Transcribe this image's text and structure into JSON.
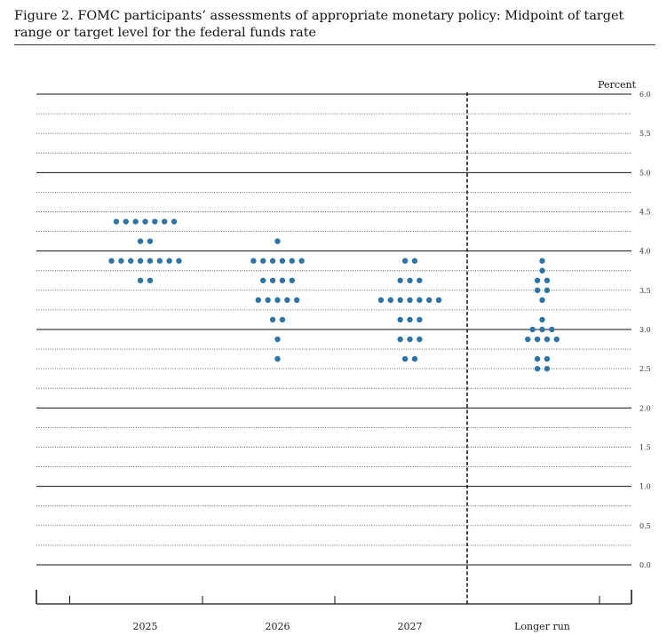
{
  "figure": {
    "title": "Figure 2.  FOMC participants’ assessments of appropriate monetary policy: Midpoint of target range or target level for the federal funds rate"
  },
  "chart_data": {
    "type": "scatter",
    "subtype": "dot-plot",
    "ylabel": "Percent",
    "ylim": [
      0.0,
      6.0
    ],
    "ytick_labels": [
      "0.0",
      "0.5",
      "1.0",
      "1.5",
      "2.0",
      "2.5",
      "3.0",
      "3.5",
      "4.0",
      "4.5",
      "5.0",
      "5.5",
      "6.0"
    ],
    "categories": [
      "2025",
      "2026",
      "2027",
      "Longer run"
    ],
    "dot_color": "#2e74a6",
    "series": [
      {
        "category": "2025",
        "points": [
          {
            "y": 4.375,
            "count": 7
          },
          {
            "y": 4.125,
            "count": 2
          },
          {
            "y": 3.875,
            "count": 8
          },
          {
            "y": 3.625,
            "count": 2
          }
        ]
      },
      {
        "category": "2026",
        "points": [
          {
            "y": 4.125,
            "count": 1
          },
          {
            "y": 3.875,
            "count": 6
          },
          {
            "y": 3.625,
            "count": 4
          },
          {
            "y": 3.375,
            "count": 5
          },
          {
            "y": 3.125,
            "count": 2
          },
          {
            "y": 2.875,
            "count": 1
          },
          {
            "y": 2.625,
            "count": 1
          }
        ]
      },
      {
        "category": "2027",
        "points": [
          {
            "y": 3.875,
            "count": 2
          },
          {
            "y": 3.625,
            "count": 3
          },
          {
            "y": 3.375,
            "count": 7
          },
          {
            "y": 3.125,
            "count": 3
          },
          {
            "y": 2.875,
            "count": 3
          },
          {
            "y": 2.625,
            "count": 2
          }
        ]
      },
      {
        "category": "Longer run",
        "points": [
          {
            "y": 3.875,
            "count": 1
          },
          {
            "y": 3.75,
            "count": 1
          },
          {
            "y": 3.625,
            "count": 2
          },
          {
            "y": 3.5,
            "count": 2
          },
          {
            "y": 3.375,
            "count": 1
          },
          {
            "y": 3.125,
            "count": 1
          },
          {
            "y": 3.0,
            "count": 3
          },
          {
            "y": 2.875,
            "count": 4
          },
          {
            "y": 2.625,
            "count": 2
          },
          {
            "y": 2.5,
            "count": 2
          }
        ]
      }
    ],
    "grid": true,
    "divider_before": "Longer run"
  }
}
